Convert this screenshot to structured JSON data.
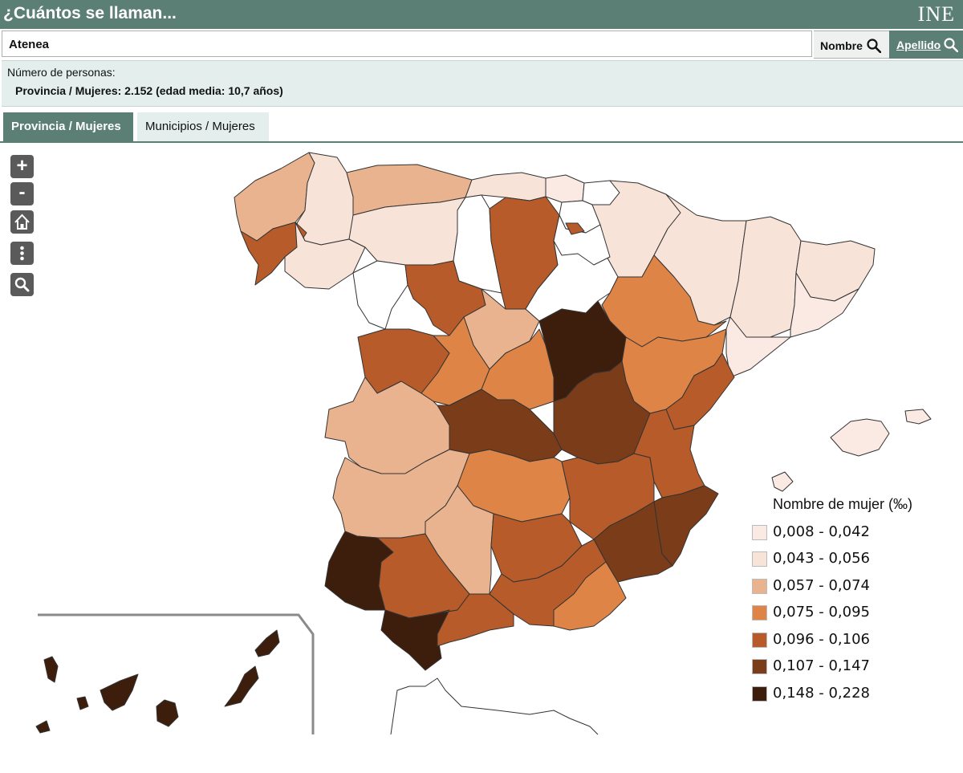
{
  "header": {
    "title": "¿Cuántos se llaman...",
    "logo": "INE"
  },
  "search": {
    "value": "Atenea",
    "nombre_label": "Nombre",
    "apellido_label": "Apellido"
  },
  "info": {
    "label": "Número de personas:",
    "value": "Provincia / Mujeres: 2.152 (edad media: 10,7 años)"
  },
  "tabs": [
    {
      "label": "Provincia / Mujeres",
      "active": true
    },
    {
      "label": "Municipios / Mujeres",
      "active": false
    }
  ],
  "controls": [
    "zoom-in",
    "zoom-out",
    "home",
    "more",
    "search"
  ],
  "legend": {
    "title": "Nombre de mujer (‰)",
    "items": [
      {
        "label": "0,008 - 0,042",
        "color": "#fbeae3"
      },
      {
        "label": "0,043 - 0,056",
        "color": "#f7e3d8"
      },
      {
        "label": "0,057 - 0,074",
        "color": "#e8b38e"
      },
      {
        "label": "0,075 - 0,095",
        "color": "#dd8446"
      },
      {
        "label": "0,096 - 0,106",
        "color": "#b65b29"
      },
      {
        "label": "0,107 - 0,147",
        "color": "#7a3c19"
      },
      {
        "label": "0,148 - 0,228",
        "color": "#3d1e0c"
      }
    ]
  },
  "colors": {
    "header": "#5b7f74",
    "info_bg": "#e3eeed",
    "control": "#5a5a5a"
  }
}
